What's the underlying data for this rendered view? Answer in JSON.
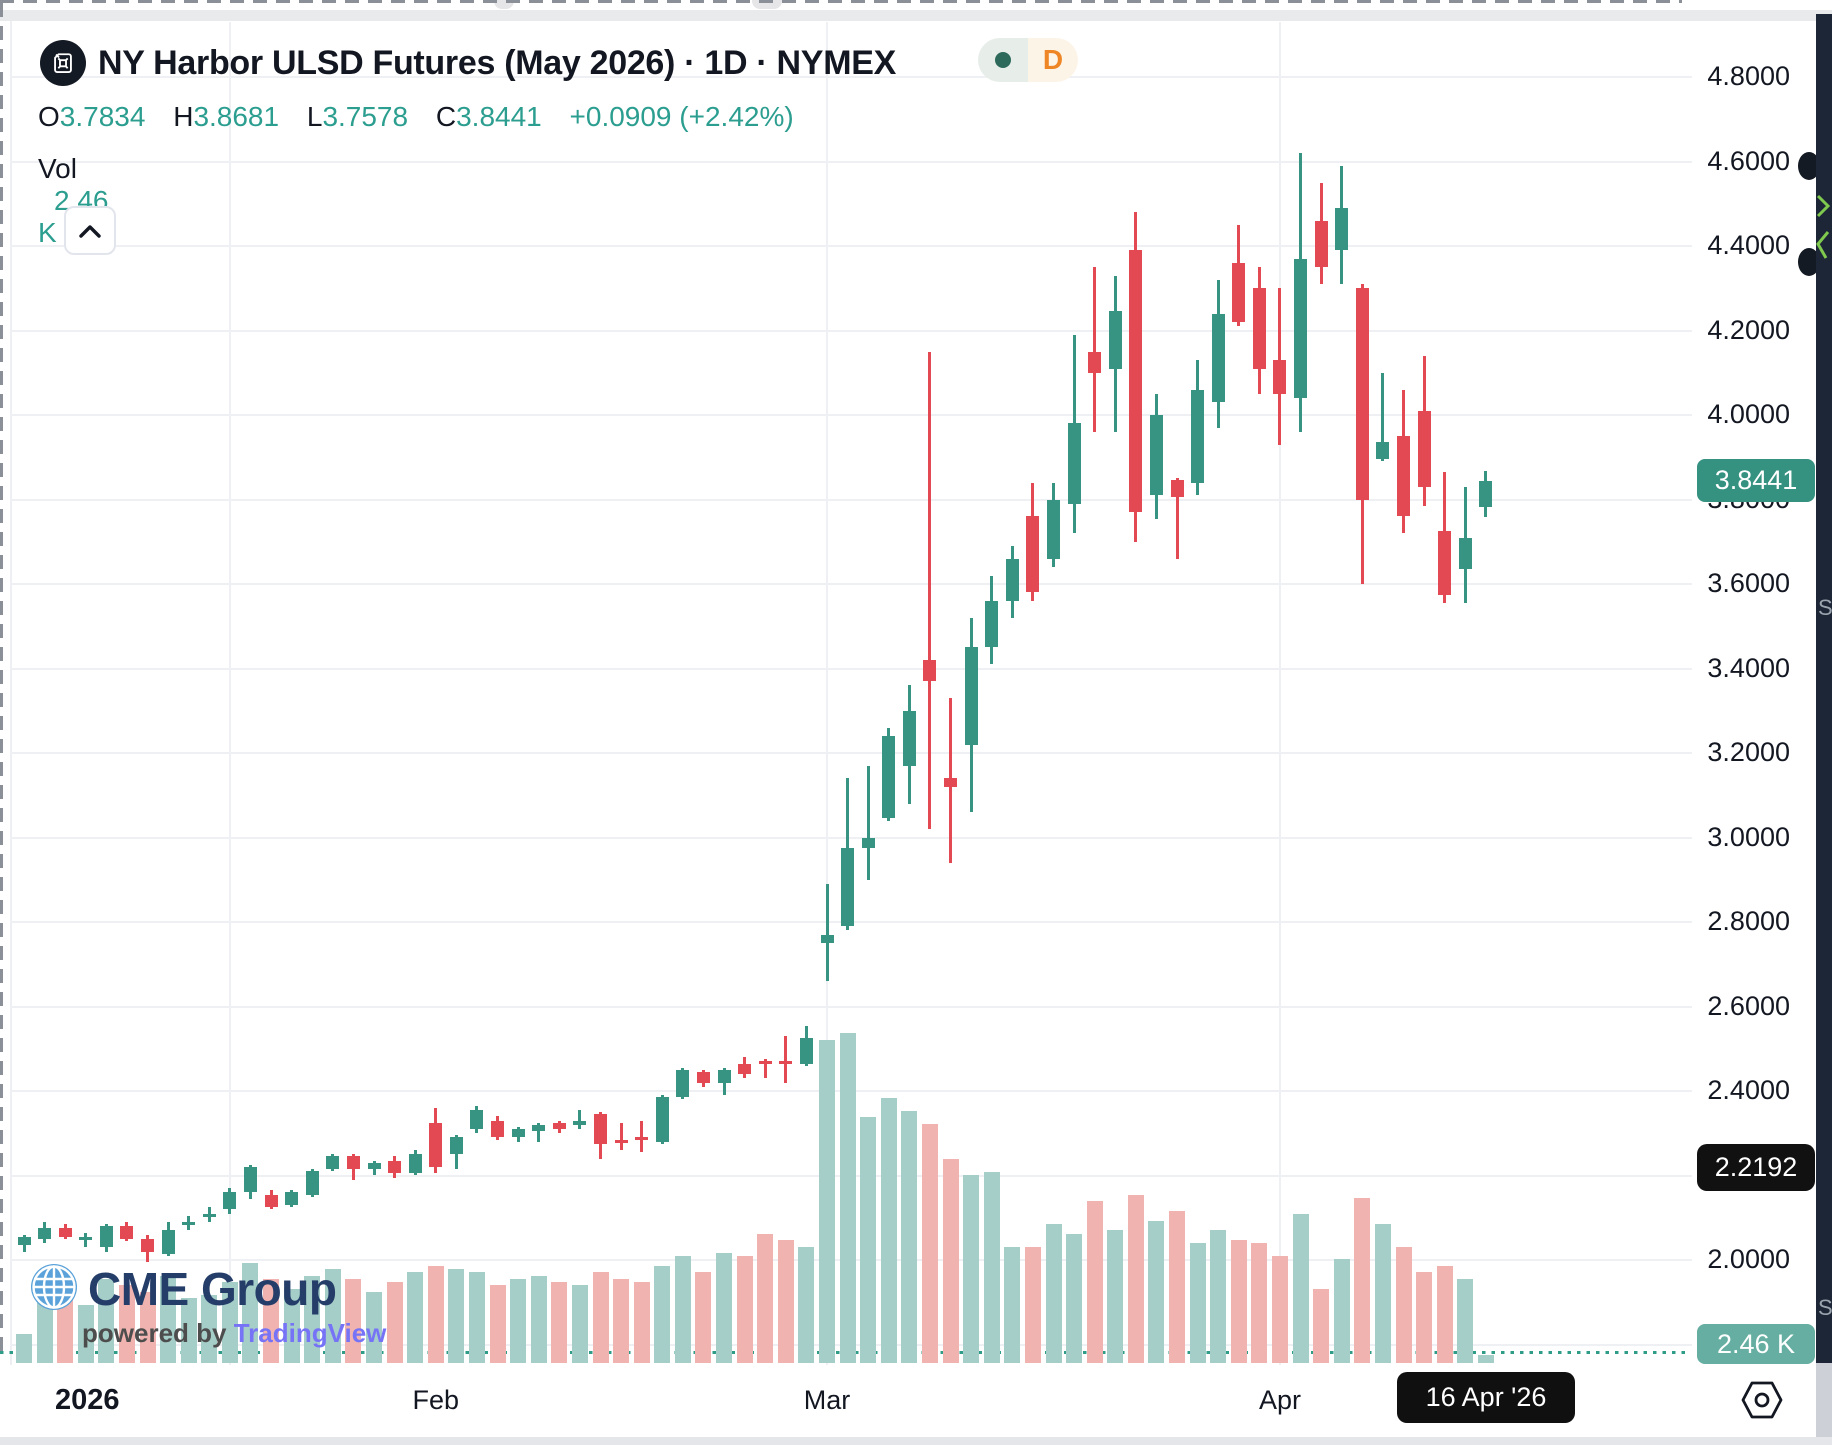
{
  "header": {
    "title": "NY Harbor ULSD Futures (May 2026) · 1D · NYMEX",
    "interval_badge": {
      "label": "D"
    },
    "legend": {
      "o_label": "O",
      "o_value": "3.7834",
      "h_label": "H",
      "h_value": "3.8681",
      "l_label": "L",
      "l_value": "3.7578",
      "c_label": "C",
      "c_value": "3.8441",
      "change": "+0.0909 (+2.42%)"
    },
    "volume_row": {
      "label": "Vol",
      "value": "2.46 K"
    }
  },
  "watermark": {
    "brand": "CME Group",
    "powered_by": "powered by",
    "provider": "TradingView"
  },
  "price_axis": {
    "ticks": [
      {
        "label": "4.8000",
        "price": 4.8
      },
      {
        "label": "4.6000",
        "price": 4.6
      },
      {
        "label": "4.4000",
        "price": 4.4
      },
      {
        "label": "4.2000",
        "price": 4.2
      },
      {
        "label": "4.0000",
        "price": 4.0
      },
      {
        "label": "3.8000",
        "price": 3.8
      },
      {
        "label": "3.6000",
        "price": 3.6
      },
      {
        "label": "3.4000",
        "price": 3.4
      },
      {
        "label": "3.2000",
        "price": 3.2
      },
      {
        "label": "3.0000",
        "price": 3.0
      },
      {
        "label": "2.8000",
        "price": 2.8
      },
      {
        "label": "2.6000",
        "price": 2.6
      },
      {
        "label": "2.4000",
        "price": 2.4
      },
      {
        "label": "2.2000",
        "price": 2.2
      },
      {
        "label": "2.0000",
        "price": 2.0
      },
      {
        "label": "",
        "price": 1.8
      }
    ],
    "last_price_badge": {
      "label": "3.8441",
      "price": 3.8441
    },
    "crosshair_badge": {
      "label": "2.2192",
      "price": 2.2192
    },
    "volume_badge": {
      "label": "2.46 K"
    }
  },
  "time_axis": {
    "year_label": "2026",
    "months": [
      {
        "label": "Feb",
        "bar": 20
      },
      {
        "label": "Mar",
        "bar": 39
      },
      {
        "label": "Apr",
        "bar": 61
      }
    ],
    "crosshair_label": "16 Apr '26",
    "grid_bars": [
      10,
      39,
      61
    ]
  },
  "colors": {
    "up": "#389482",
    "down": "#e34953",
    "vol_up": "#a5cec8",
    "vol_down": "#f0b3b0",
    "accent_teal": "#2c9e90",
    "badge_green": "#359180",
    "badge_black": "#111111",
    "badge_vol": "#65aea1",
    "crosshair": "#8b8f98",
    "dotted_line": "#2f9c8a",
    "grid": "#eef0f4",
    "text": "#131722",
    "d_orange": "#ee8625",
    "tv_blue": "#7673f6",
    "cme_navy": "#253e69",
    "globe_blue": "#5aa2d9"
  },
  "chart_data": {
    "type": "candlestick",
    "title": "NY Harbor ULSD Futures (May 2026)",
    "interval": "1D",
    "exchange": "NYMEX",
    "open": 3.7834,
    "high": 3.8681,
    "low": 3.7578,
    "close": 3.8441,
    "change": "+0.0909",
    "change_pct": "+2.42%",
    "volume": "2.46 K",
    "ylim": [
      1.93,
      4.95
    ],
    "y_tick_step": 0.2,
    "x_range": [
      "2026-01-02",
      "2026-04-16"
    ],
    "legend_position": "top-left",
    "grid": true,
    "crosshair": {
      "price": 2.2192,
      "date": "16 Apr '26"
    },
    "last_price_line": 3.8441,
    "columns": [
      "date",
      "open",
      "high",
      "low",
      "close",
      "volume_k"
    ],
    "bars": [
      [
        "Jan 2",
        2.035,
        2.06,
        2.02,
        2.055,
        9
      ],
      [
        "Jan 5",
        2.05,
        2.09,
        2.04,
        2.075,
        28
      ],
      [
        "Jan 6",
        2.075,
        2.085,
        2.05,
        2.055,
        24
      ],
      [
        "Jan 7",
        2.05,
        2.065,
        2.03,
        2.055,
        18
      ],
      [
        "Jan 8",
        2.03,
        2.085,
        2.02,
        2.08,
        26
      ],
      [
        "Jan 9",
        2.08,
        2.09,
        2.045,
        2.05,
        24
      ],
      [
        "Jan 12",
        2.05,
        2.06,
        1.995,
        2.02,
        22
      ],
      [
        "Jan 13",
        2.015,
        2.09,
        2.01,
        2.07,
        27
      ],
      [
        "Jan 14",
        2.085,
        2.105,
        2.07,
        2.09,
        20
      ],
      [
        "Jan 15",
        2.105,
        2.125,
        2.09,
        2.11,
        21
      ],
      [
        "Jan 16",
        2.12,
        2.17,
        2.11,
        2.16,
        25
      ],
      [
        "Jan 20",
        2.16,
        2.225,
        2.145,
        2.22,
        31
      ],
      [
        "Jan 21",
        2.155,
        2.165,
        2.12,
        2.125,
        26
      ],
      [
        "Jan 22",
        2.13,
        2.165,
        2.125,
        2.16,
        23
      ],
      [
        "Jan 23",
        2.155,
        2.215,
        2.15,
        2.21,
        27
      ],
      [
        "Jan 26",
        2.215,
        2.25,
        2.21,
        2.245,
        29
      ],
      [
        "Jan 27",
        2.245,
        2.25,
        2.19,
        2.215,
        26
      ],
      [
        "Jan 28",
        2.215,
        2.235,
        2.2,
        2.23,
        22
      ],
      [
        "Jan 29",
        2.235,
        2.245,
        2.195,
        2.205,
        25
      ],
      [
        "Jan 30",
        2.205,
        2.26,
        2.2,
        2.25,
        28
      ],
      [
        "Feb 2",
        2.325,
        2.36,
        2.205,
        2.22,
        30
      ],
      [
        "Feb 3",
        2.25,
        2.295,
        2.215,
        2.29,
        29
      ],
      [
        "Feb 4",
        2.31,
        2.365,
        2.3,
        2.355,
        28
      ],
      [
        "Feb 5",
        2.33,
        2.34,
        2.285,
        2.29,
        24
      ],
      [
        "Feb 6",
        2.29,
        2.315,
        2.28,
        2.31,
        26
      ],
      [
        "Feb 9",
        2.305,
        2.325,
        2.28,
        2.32,
        27
      ],
      [
        "Feb 10",
        2.325,
        2.33,
        2.3,
        2.31,
        25
      ],
      [
        "Feb 11",
        2.32,
        2.355,
        2.31,
        2.33,
        24
      ],
      [
        "Feb 12",
        2.345,
        2.35,
        2.24,
        2.275,
        28
      ],
      [
        "Feb 13",
        2.283,
        2.325,
        2.26,
        2.278,
        26
      ],
      [
        "Feb 17",
        2.29,
        2.33,
        2.255,
        2.285,
        25
      ],
      [
        "Feb 18",
        2.28,
        2.39,
        2.275,
        2.385,
        30
      ],
      [
        "Feb 19",
        2.385,
        2.455,
        2.38,
        2.45,
        33
      ],
      [
        "Feb 20",
        2.445,
        2.45,
        2.41,
        2.42,
        28
      ],
      [
        "Feb 23",
        2.42,
        2.455,
        2.39,
        2.45,
        34
      ],
      [
        "Feb 24",
        2.465,
        2.48,
        2.43,
        2.44,
        33
      ],
      [
        "Feb 25",
        2.47,
        2.475,
        2.43,
        2.465,
        40
      ],
      [
        "Feb 26",
        2.47,
        2.53,
        2.42,
        2.465,
        38
      ],
      [
        "Feb 27",
        2.465,
        2.555,
        2.46,
        2.525,
        36
      ],
      [
        "Mar 2",
        2.75,
        2.89,
        2.66,
        2.77,
        100
      ],
      [
        "Mar 3",
        2.79,
        3.14,
        2.78,
        2.975,
        102
      ],
      [
        "Mar 4",
        2.975,
        3.17,
        2.9,
        3.0,
        76
      ],
      [
        "Mar 5",
        3.045,
        3.26,
        3.04,
        3.24,
        82
      ],
      [
        "Mar 6",
        3.17,
        3.36,
        3.08,
        3.3,
        78
      ],
      [
        "Mar 9",
        3.42,
        4.15,
        3.02,
        3.37,
        74
      ],
      [
        "Mar 10",
        3.14,
        3.33,
        2.94,
        3.12,
        63
      ],
      [
        "Mar 11",
        3.22,
        3.52,
        3.06,
        3.45,
        58
      ],
      [
        "Mar 12",
        3.45,
        3.62,
        3.41,
        3.56,
        59
      ],
      [
        "Mar 13",
        3.56,
        3.69,
        3.52,
        3.66,
        36
      ],
      [
        "Mar 16",
        3.76,
        3.84,
        3.56,
        3.58,
        36
      ],
      [
        "Mar 17",
        3.66,
        3.84,
        3.64,
        3.8,
        43
      ],
      [
        "Mar 18",
        3.79,
        4.19,
        3.72,
        3.98,
        40
      ],
      [
        "Mar 19",
        4.15,
        4.35,
        3.96,
        4.1,
        50
      ],
      [
        "Mar 20",
        4.11,
        4.33,
        3.96,
        4.245,
        41
      ],
      [
        "Mar 23",
        4.39,
        4.48,
        3.7,
        3.77,
        52
      ],
      [
        "Mar 24",
        3.81,
        4.05,
        3.755,
        4.0,
        44
      ],
      [
        "Mar 25",
        3.845,
        3.85,
        3.66,
        3.805,
        47
      ],
      [
        "Mar 26",
        3.84,
        4.13,
        3.81,
        4.06,
        37
      ],
      [
        "Mar 27",
        4.03,
        4.32,
        3.97,
        4.24,
        41
      ],
      [
        "Mar 30",
        4.36,
        4.45,
        4.21,
        4.22,
        38
      ],
      [
        "Mar 31",
        4.3,
        4.35,
        4.05,
        4.11,
        37
      ],
      [
        "Apr 1",
        4.13,
        4.3,
        3.93,
        4.05,
        33
      ],
      [
        "Apr 2",
        4.04,
        4.62,
        3.96,
        4.37,
        46
      ],
      [
        "Apr 6",
        4.46,
        4.55,
        4.31,
        4.35,
        23
      ],
      [
        "Apr 7",
        4.39,
        4.59,
        4.31,
        4.49,
        32
      ],
      [
        "Apr 8",
        4.3,
        4.31,
        3.6,
        3.8,
        51
      ],
      [
        "Apr 9",
        3.895,
        4.1,
        3.89,
        3.935,
        43
      ],
      [
        "Apr 10",
        3.95,
        4.06,
        3.72,
        3.76,
        36
      ],
      [
        "Apr 13",
        4.01,
        4.14,
        3.785,
        3.83,
        28
      ],
      [
        "Apr 14",
        3.725,
        3.865,
        3.555,
        3.575,
        30
      ],
      [
        "Apr 15",
        3.635,
        3.83,
        3.555,
        3.71,
        26
      ],
      [
        "Apr 16",
        3.7834,
        3.8681,
        3.7578,
        3.8441,
        2.46
      ]
    ]
  }
}
